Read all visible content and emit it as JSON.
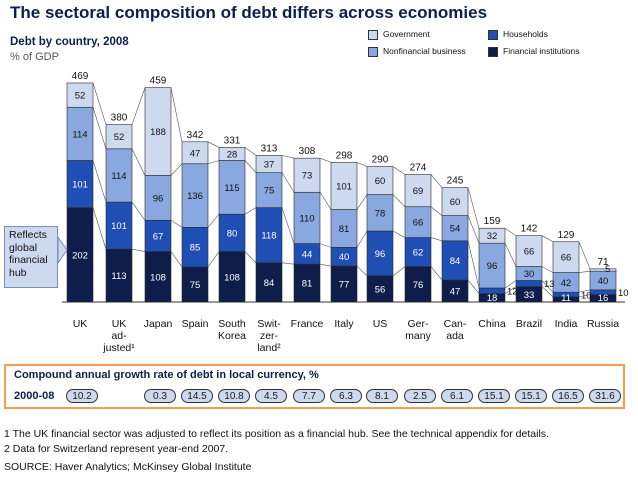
{
  "title": "The sectoral composition of debt differs across economies",
  "subtitle": "Debt by country, 2008",
  "unit": "% of GDP",
  "legend": [
    {
      "label": "Government",
      "color": "#cdd9ef"
    },
    {
      "label": "Households",
      "color": "#1f4fb4"
    },
    {
      "label": "Nonfinancial business",
      "color": "#8aa8e0"
    },
    {
      "label": "Financial institutions",
      "color": "#0e1d4a"
    }
  ],
  "callout": "Reflects global financial hub",
  "chart_data": {
    "type": "bar",
    "stacked": true,
    "categories": [
      [
        "UK"
      ],
      [
        "UK",
        "ad-",
        "justed¹"
      ],
      [
        "Japan"
      ],
      [
        "Spain"
      ],
      [
        "South",
        "Korea"
      ],
      [
        "Swit-",
        "zer-",
        "land²"
      ],
      [
        "France"
      ],
      [
        "Italy"
      ],
      [
        "US"
      ],
      [
        "Ger-",
        "many"
      ],
      [
        "Can-",
        "ada"
      ],
      [
        "China"
      ],
      [
        "Brazil"
      ],
      [
        "India"
      ],
      [
        "Russia"
      ]
    ],
    "series": [
      {
        "name": "Financial institutions",
        "values": [
          202,
          113,
          108,
          75,
          108,
          84,
          81,
          77,
          56,
          76,
          47,
          18,
          33,
          11,
          16
        ]
      },
      {
        "name": "Households",
        "values": [
          101,
          101,
          67,
          85,
          80,
          118,
          44,
          40,
          96,
          62,
          84,
          12,
          13,
          10,
          10
        ]
      },
      {
        "name": "Nonfinancial business",
        "values": [
          114,
          114,
          96,
          136,
          115,
          75,
          110,
          81,
          78,
          66,
          54,
          96,
          30,
          42,
          40
        ]
      },
      {
        "name": "Government",
        "values": [
          52,
          52,
          188,
          47,
          28,
          37,
          73,
          101,
          60,
          69,
          60,
          32,
          66,
          66,
          5
        ]
      }
    ],
    "totals": [
      469,
      380,
      459,
      342,
      331,
      313,
      308,
      298,
      290,
      274,
      245,
      159,
      142,
      129,
      71
    ],
    "ylim": [
      0,
      480
    ]
  },
  "cagr": {
    "title": "Compound annual growth rate of debt in local currency, %",
    "period": "2000-08",
    "values": [
      "10.2",
      "",
      "0.3",
      "14.5",
      "10.8",
      "4.5",
      "7.7",
      "6.3",
      "8.1",
      "2.5",
      "6.1",
      "15.1",
      "15.1",
      "16.5",
      "31.6"
    ]
  },
  "footnotes": [
    "1 The UK financial sector was adjusted to reflect its position as a financial hub. See the technical appendix for details.",
    "2 Data for Switzerland represent year-end 2007."
  ],
  "source": "SOURCE: Haver Analytics; McKinsey Global Institute"
}
